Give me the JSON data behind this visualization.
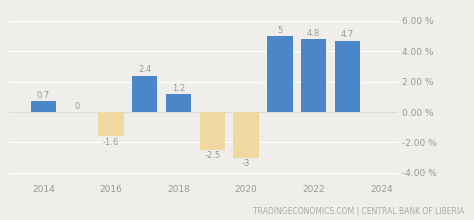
{
  "years": [
    2014,
    2015,
    2016,
    2017,
    2018,
    2019,
    2020,
    2021,
    2022,
    2023
  ],
  "values": [
    0.7,
    0.0,
    -1.6,
    2.4,
    1.2,
    -2.5,
    -3.0,
    5.0,
    4.8,
    4.7
  ],
  "labels": [
    "0.7",
    "0",
    "-1.6",
    "2.4",
    "1.2",
    "-2.5",
    "-3",
    "5",
    "4.8",
    "4.7"
  ],
  "bar_color_positive": "#4a86c8",
  "bar_color_negative": "#f0d9a0",
  "background_color": "#f0eeea",
  "grid_color": "#ffffff",
  "label_color": "#999999",
  "tick_color": "#999999",
  "ylim": [
    -4.5,
    6.8
  ],
  "yticks": [
    -4.0,
    -2.0,
    0.0,
    2.0,
    4.0,
    6.0
  ],
  "ytick_labels": [
    "-4.00 %",
    "-2.00 %",
    "0.00 %",
    "2.00 %",
    "4.00 %",
    "6.00 %"
  ],
  "xtick_labels": [
    "2014",
    "2016",
    "2018",
    "2020",
    "2022",
    "2024"
  ],
  "xtick_positions": [
    2014,
    2016,
    2018,
    2020,
    2022,
    2024
  ],
  "watermark": "TRADINGECONOMICS.COM | CENTRAL BANK OF LIBERIA",
  "watermark_fontsize": 5.5,
  "label_fontsize": 6.0,
  "tick_fontsize": 6.5,
  "bar_width": 0.75,
  "xlim": [
    2013.0,
    2024.5
  ]
}
